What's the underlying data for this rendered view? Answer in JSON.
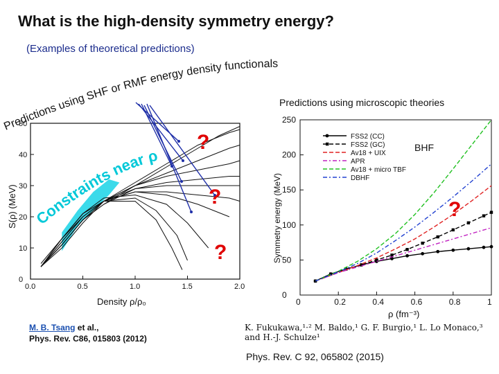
{
  "title": "What is the high-density symmetry energy?",
  "subtitle": "(Examples of theoretical predictions)",
  "curved_label": "Predictions using SHF or RMF energy density functionals",
  "right_heading": "Predictions using microscopic theories",
  "constraints_label": "Constraints near ρ₀",
  "question_mark": "?",
  "bhf_label": "BHF",
  "ref_left": {
    "authors_link": "M. B. Tsang",
    "authors_rest": " et al.,",
    "journal": "Phys. Rev. C86, 015803 (2012)"
  },
  "ref_right": {
    "authors": "K. Fukukawa,¹·² M. Baldo,¹ G. F. Burgio,¹ L. Lo Monaco,³ and H.-J. Schulze¹",
    "journal": "Phys. Rev. C 92, 065802 (2015)"
  },
  "colors": {
    "title": "#111111",
    "subtitle": "#1a2b8c",
    "question": "#e00000",
    "constraints": "#00c8d8",
    "constraint_band": "#19d3e6",
    "arrow": "#1f2fa8"
  },
  "chart_data": [
    {
      "type": "line",
      "xlabel": "Density ρ/ρ₀",
      "ylabel": "S(ρ) (MeV)",
      "xlim": [
        0.0,
        2.0
      ],
      "ylim": [
        0,
        50
      ],
      "xticks": [
        "0.0",
        "0.5",
        "1.0",
        "1.5",
        "2.0"
      ],
      "yticks": [
        "0",
        "10",
        "20",
        "30",
        "40",
        "50"
      ],
      "series": [
        {
          "x": [
            0.1,
            0.3,
            0.5,
            0.7,
            1.0,
            1.3,
            1.6,
            1.8,
            2.0
          ],
          "y": [
            4,
            10,
            18,
            25,
            30,
            36,
            42,
            46,
            49
          ]
        },
        {
          "x": [
            0.1,
            0.3,
            0.5,
            0.7,
            1.0,
            1.3,
            1.6,
            1.9,
            2.0
          ],
          "y": [
            4,
            11,
            19,
            25,
            30,
            34,
            38,
            42,
            43
          ]
        },
        {
          "x": [
            0.1,
            0.3,
            0.5,
            0.7,
            1.0,
            1.3,
            1.6,
            1.9,
            2.0
          ],
          "y": [
            4,
            11,
            19,
            24,
            30,
            33,
            35,
            37,
            38
          ]
        },
        {
          "x": [
            0.1,
            0.3,
            0.5,
            0.7,
            1.0,
            1.3,
            1.6,
            1.9,
            2.0
          ],
          "y": [
            4,
            11,
            19,
            24,
            29,
            31,
            32,
            33,
            33
          ]
        },
        {
          "x": [
            0.1,
            0.3,
            0.5,
            0.7,
            1.0,
            1.3,
            1.6,
            1.9,
            2.0
          ],
          "y": [
            4,
            11,
            19,
            25,
            29,
            30,
            30,
            30,
            30
          ]
        },
        {
          "x": [
            0.1,
            0.3,
            0.5,
            0.7,
            1.0,
            1.3,
            1.6,
            1.9,
            2.0
          ],
          "y": [
            4,
            12,
            20,
            25,
            28,
            28,
            27,
            26,
            25
          ]
        },
        {
          "x": [
            0.1,
            0.3,
            0.5,
            0.7,
            1.0,
            1.3,
            1.6,
            1.9
          ],
          "y": [
            4,
            12,
            20,
            25,
            28,
            27,
            24,
            20
          ]
        },
        {
          "x": [
            0.1,
            0.3,
            0.5,
            0.7,
            1.0,
            1.3,
            1.5,
            1.7
          ],
          "y": [
            4,
            13,
            21,
            26,
            27,
            24,
            18,
            10
          ]
        },
        {
          "x": [
            0.1,
            0.3,
            0.5,
            0.7,
            1.0,
            1.2,
            1.4,
            1.5
          ],
          "y": [
            4,
            13,
            21,
            25,
            26,
            22,
            14,
            6
          ]
        },
        {
          "x": [
            0.1,
            0.3,
            0.5,
            0.7,
            1.0,
            1.2,
            1.35,
            1.45
          ],
          "y": [
            4,
            13,
            21,
            25,
            25,
            19,
            10,
            3
          ]
        },
        {
          "x": [
            0.1,
            0.3,
            0.5,
            0.7,
            1.0,
            1.3,
            1.6,
            1.9,
            2.0
          ],
          "y": [
            5,
            13,
            20,
            25,
            31,
            37,
            43,
            47,
            48
          ]
        }
      ]
    },
    {
      "type": "line",
      "xlabel": "ρ (fm⁻³)",
      "ylabel": "Symmetry energy (MeV)",
      "xlim": [
        0,
        1
      ],
      "ylim": [
        0,
        250
      ],
      "xticks": [
        "0",
        "0.2",
        "0.4",
        "0.6",
        "0.8",
        "1"
      ],
      "yticks": [
        "0",
        "50",
        "100",
        "150",
        "200",
        "250"
      ],
      "series": [
        {
          "name": "FSS2 (CC)",
          "color": "#000000",
          "dash": "solid",
          "markers": true,
          "x": [
            0.08,
            0.16,
            0.24,
            0.32,
            0.4,
            0.48,
            0.56,
            0.64,
            0.72,
            0.8,
            0.88,
            0.96,
            1.0
          ],
          "y": [
            20,
            30,
            37,
            43,
            48,
            52,
            56,
            59,
            62,
            64,
            66,
            68,
            69
          ]
        },
        {
          "name": "FSS2 (GC)",
          "color": "#000000",
          "dash": "dashed",
          "markers": true,
          "x": [
            0.08,
            0.16,
            0.24,
            0.32,
            0.4,
            0.48,
            0.56,
            0.64,
            0.72,
            0.8,
            0.88,
            0.96,
            1.0
          ],
          "y": [
            20,
            30,
            37,
            43,
            50,
            57,
            65,
            74,
            83,
            93,
            103,
            113,
            118
          ]
        },
        {
          "name": "Av18 + UIX",
          "color": "#e02020",
          "dash": "dashed",
          "markers": false,
          "x": [
            0.08,
            0.2,
            0.3,
            0.4,
            0.5,
            0.6,
            0.7,
            0.8,
            0.9,
            1.0
          ],
          "y": [
            20,
            32,
            42,
            53,
            66,
            80,
            97,
            115,
            135,
            156
          ]
        },
        {
          "name": "APR",
          "color": "#c020c0",
          "dash": "dashdot",
          "markers": false,
          "x": [
            0.08,
            0.2,
            0.3,
            0.4,
            0.5,
            0.6,
            0.7,
            0.8,
            0.9,
            1.0
          ],
          "y": [
            20,
            32,
            40,
            48,
            56,
            64,
            72,
            80,
            88,
            96
          ]
        },
        {
          "name": "Av18 + micro TBF",
          "color": "#20c020",
          "dash": "dashed",
          "markers": false,
          "x": [
            0.08,
            0.2,
            0.3,
            0.4,
            0.5,
            0.6,
            0.7,
            0.8,
            0.9,
            1.0
          ],
          "y": [
            20,
            34,
            48,
            66,
            88,
            115,
            146,
            180,
            215,
            250
          ]
        },
        {
          "name": "DBHF",
          "color": "#2040d0",
          "dash": "dashdot",
          "markers": false,
          "x": [
            0.08,
            0.2,
            0.3,
            0.4,
            0.5,
            0.6,
            0.7,
            0.8,
            0.9,
            1.0
          ],
          "y": [
            20,
            33,
            45,
            60,
            78,
            97,
            118,
            140,
            163,
            187
          ]
        }
      ]
    }
  ]
}
